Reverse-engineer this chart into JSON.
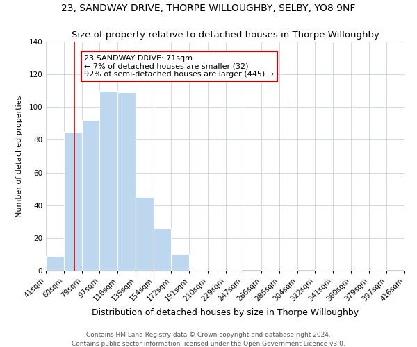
{
  "title": "23, SANDWAY DRIVE, THORPE WILLOUGHBY, SELBY, YO8 9NF",
  "subtitle": "Size of property relative to detached houses in Thorpe Willoughby",
  "xlabel": "Distribution of detached houses by size in Thorpe Willoughby",
  "ylabel": "Number of detached properties",
  "bin_edges": [
    41,
    60,
    79,
    97,
    116,
    135,
    154,
    172,
    191,
    210,
    229,
    247,
    266,
    285,
    304,
    322,
    341,
    360,
    379,
    397,
    416
  ],
  "bar_heights": [
    9,
    85,
    92,
    110,
    109,
    45,
    26,
    10,
    0,
    0,
    0,
    1,
    0,
    0,
    1,
    0,
    0,
    0,
    0,
    1
  ],
  "bar_color": "#bdd7ee",
  "bar_edgecolor": "#ffffff",
  "bar_linewidth": 0.8,
  "vline_x": 71,
  "vline_color": "#cc0000",
  "ylim": [
    0,
    140
  ],
  "yticks": [
    0,
    20,
    40,
    60,
    80,
    100,
    120,
    140
  ],
  "annotation_text": "23 SANDWAY DRIVE: 71sqm\n← 7% of detached houses are smaller (32)\n92% of semi-detached houses are larger (445) →",
  "annotation_box_edgecolor": "#cc0000",
  "annotation_box_facecolor": "#ffffff",
  "footer_line1": "Contains HM Land Registry data © Crown copyright and database right 2024.",
  "footer_line2": "Contains public sector information licensed under the Open Government Licence v3.0.",
  "background_color": "#ffffff",
  "grid_color": "#d0d8e8",
  "title_fontsize": 10,
  "subtitle_fontsize": 9.5,
  "xlabel_fontsize": 9,
  "ylabel_fontsize": 8,
  "tick_fontsize": 7.5,
  "annotation_fontsize": 8,
  "footer_fontsize": 6.5
}
